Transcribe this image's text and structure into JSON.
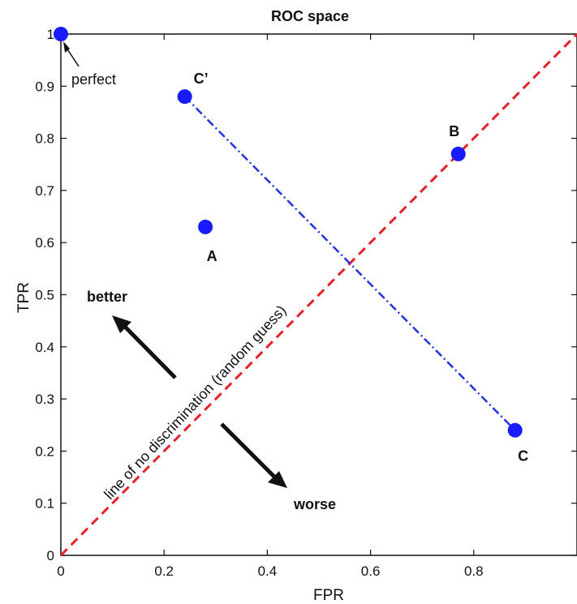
{
  "chart_data": {
    "type": "scatter",
    "title": "ROC space",
    "xlabel": "FPR",
    "ylabel": "TPR",
    "xlim": [
      0,
      1
    ],
    "ylim": [
      0,
      1
    ],
    "xticks": [
      "0",
      "0.2",
      "0.4",
      "0.6",
      "0.8"
    ],
    "yticks": [
      "0",
      "0.1",
      "0.2",
      "0.3",
      "0.4",
      "0.5",
      "0.6",
      "0.7",
      "0.8",
      "0.9",
      "1"
    ],
    "grid": false,
    "points": [
      {
        "label": "",
        "x": 0.0,
        "y": 1.0
      },
      {
        "label": "C’",
        "x": 0.24,
        "y": 0.88
      },
      {
        "label": "B",
        "x": 0.77,
        "y": 0.77
      },
      {
        "label": "A",
        "x": 0.28,
        "y": 0.63
      },
      {
        "label": "C",
        "x": 0.88,
        "y": 0.24
      }
    ],
    "lines": [
      {
        "from": [
          0,
          0
        ],
        "to": [
          1,
          1
        ],
        "style": "dashed",
        "color": "#e8202a"
      },
      {
        "from": [
          0.24,
          0.88
        ],
        "to": [
          0.88,
          0.24
        ],
        "style": "dashdot",
        "color": "#2233dd"
      }
    ],
    "annotations": {
      "perfect": "perfect",
      "diagonal": "line of no discrimination (random guess)",
      "better": "better",
      "worse": "worse"
    },
    "colors": {
      "point": "#1a1aff",
      "axes": "#111111"
    }
  }
}
